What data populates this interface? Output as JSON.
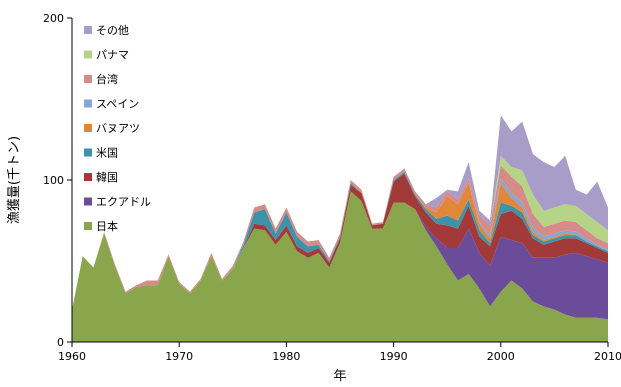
{
  "chart_data": {
    "type": "area",
    "stacked": true,
    "xlabel": "年",
    "ylabel": "漁獲量(千トン)",
    "xlim": [
      1960,
      2010
    ],
    "ylim": [
      0,
      200
    ],
    "xticks": [
      1960,
      1970,
      1980,
      1990,
      2000,
      2010
    ],
    "yticks": [
      0,
      100,
      200
    ],
    "grid": false,
    "legend_position": "top-left",
    "x": [
      1960,
      1961,
      1962,
      1963,
      1964,
      1965,
      1966,
      1967,
      1968,
      1969,
      1970,
      1971,
      1972,
      1973,
      1974,
      1975,
      1976,
      1977,
      1978,
      1979,
      1980,
      1981,
      1982,
      1983,
      1984,
      1985,
      1986,
      1987,
      1988,
      1989,
      1990,
      1991,
      1992,
      1993,
      1994,
      1995,
      1996,
      1997,
      1998,
      1999,
      2000,
      2001,
      2002,
      2003,
      2004,
      2005,
      2006,
      2007,
      2008,
      2009,
      2010
    ],
    "series": [
      {
        "name": "日本",
        "color": "#8AA64C",
        "values": [
          20,
          53,
          46,
          67,
          47,
          30,
          34,
          35,
          35,
          53,
          36,
          30,
          38,
          53,
          38,
          45,
          58,
          70,
          69,
          60,
          68,
          56,
          52,
          55,
          46,
          61,
          93,
          87,
          70,
          70,
          86,
          86,
          82,
          69,
          59,
          48,
          38,
          42,
          33,
          22,
          31,
          38,
          33,
          25,
          22,
          20,
          17,
          15,
          15,
          15,
          14
        ]
      },
      {
        "name": "エクアドル",
        "color": "#6B4C9A",
        "values": [
          0,
          0,
          0,
          0,
          0,
          0,
          0,
          0,
          0,
          0,
          0,
          0,
          0,
          0,
          0,
          0,
          0,
          0,
          0,
          0,
          0,
          0,
          0,
          0,
          0,
          0,
          0,
          0,
          0,
          0,
          0,
          0,
          0,
          2,
          5,
          10,
          20,
          28,
          22,
          25,
          34,
          25,
          28,
          27,
          30,
          32,
          37,
          40,
          38,
          36,
          35
        ]
      },
      {
        "name": "韓国",
        "color": "#A23A3A",
        "values": [
          0,
          0,
          0,
          0,
          0,
          0,
          0,
          0,
          0,
          0,
          0,
          0,
          0,
          0,
          0,
          0,
          0,
          3,
          3,
          3,
          4,
          3,
          3,
          3,
          3,
          3,
          4,
          5,
          2,
          3,
          13,
          18,
          8,
          9,
          9,
          14,
          12,
          14,
          10,
          12,
          14,
          18,
          15,
          12,
          8,
          10,
          10,
          9,
          8,
          7,
          6
        ]
      },
      {
        "name": "米国",
        "color": "#3E93A8",
        "values": [
          0,
          0,
          0,
          0,
          0,
          0,
          0,
          0,
          0,
          0,
          0,
          0,
          0,
          0,
          0,
          0,
          2,
          7,
          10,
          4,
          8,
          6,
          4,
          2,
          1,
          1,
          1,
          0,
          0,
          0,
          1,
          1,
          1,
          2,
          3,
          6,
          5,
          4,
          4,
          2,
          7,
          3,
          4,
          2,
          2,
          2,
          2,
          2,
          1,
          1,
          1
        ]
      },
      {
        "name": "バヌアツ",
        "color": "#E0873A",
        "values": [
          0,
          0,
          0,
          0,
          0,
          0,
          0,
          0,
          0,
          0,
          0,
          0,
          0,
          0,
          0,
          0,
          0,
          0,
          0,
          0,
          0,
          0,
          0,
          0,
          0,
          0,
          0,
          0,
          0,
          0,
          0,
          0,
          0,
          1,
          4,
          12,
          10,
          10,
          4,
          3,
          12,
          5,
          3,
          2,
          1,
          1,
          1,
          0,
          0,
          0,
          0
        ]
      },
      {
        "name": "スペイン",
        "color": "#88A6D2",
        "values": [
          0,
          0,
          0,
          0,
          0,
          0,
          0,
          0,
          0,
          0,
          0,
          0,
          0,
          0,
          0,
          0,
          0,
          0,
          0,
          0,
          0,
          0,
          0,
          0,
          0,
          0,
          0,
          0,
          0,
          0,
          0,
          0,
          0,
          0,
          0,
          0,
          0,
          0,
          1,
          2,
          3,
          3,
          3,
          3,
          2,
          2,
          2,
          2,
          2,
          1,
          1
        ]
      },
      {
        "name": "台湾",
        "color": "#D58C88",
        "values": [
          0,
          0,
          0,
          1,
          1,
          1,
          1,
          3,
          3,
          1,
          1,
          1,
          1,
          2,
          1,
          2,
          2,
          3,
          3,
          3,
          3,
          3,
          3,
          3,
          2,
          2,
          2,
          2,
          1,
          1,
          2,
          2,
          2,
          2,
          3,
          3,
          3,
          3,
          4,
          6,
          8,
          10,
          10,
          8,
          6,
          6,
          6,
          6,
          5,
          4,
          4
        ]
      },
      {
        "name": "パナマ",
        "color": "#B6D488",
        "values": [
          0,
          0,
          0,
          0,
          0,
          0,
          0,
          0,
          0,
          0,
          0,
          0,
          0,
          0,
          0,
          0,
          0,
          0,
          0,
          0,
          0,
          0,
          0,
          0,
          0,
          0,
          0,
          0,
          0,
          0,
          0,
          0,
          0,
          0,
          0,
          0,
          0,
          0,
          0,
          0,
          6,
          6,
          10,
          12,
          10,
          10,
          10,
          10,
          10,
          10,
          8
        ]
      },
      {
        "name": "その他",
        "color": "#A89CC8",
        "values": [
          0,
          0,
          0,
          0,
          0,
          0,
          0,
          0,
          0,
          0,
          0,
          0,
          0,
          0,
          0,
          0,
          0,
          0,
          0,
          0,
          0,
          0,
          0,
          0,
          0,
          0,
          0,
          0,
          0,
          0,
          0,
          0,
          0,
          0,
          6,
          1,
          5,
          10,
          3,
          3,
          25,
          22,
          30,
          25,
          30,
          25,
          30,
          10,
          12,
          25,
          14
        ]
      }
    ]
  }
}
